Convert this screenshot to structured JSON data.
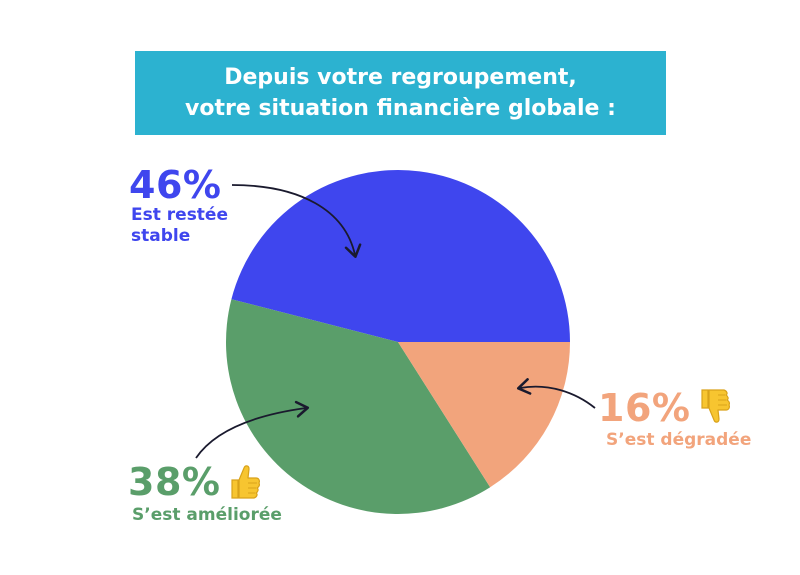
{
  "title": {
    "line1": "Depuis votre regroupement,",
    "line2": "votre situation financière globale :"
  },
  "colors": {
    "banner": "#2cb2d0",
    "stable": "#3f46ee",
    "ameliore": "#5a9e6a",
    "degrade": "#f2a47c",
    "emoji": "#f7c530"
  },
  "labels": {
    "stable": {
      "pct": "46%",
      "desc_line1": "Est restée",
      "desc_line2": "stable"
    },
    "ameliore": {
      "pct": "38%",
      "desc": "S’est améliorée",
      "icon": "thumbs-up-icon"
    },
    "degrade": {
      "pct": "16%",
      "desc": "S’est dégradée",
      "icon": "thumbs-down-icon"
    }
  },
  "chart_data": {
    "type": "pie",
    "categories": [
      "Est restée stable",
      "S’est améliorée",
      "S’est dégradée"
    ],
    "values": [
      46,
      38,
      16
    ],
    "title": "Depuis votre regroupement, votre situation financière globale :"
  }
}
